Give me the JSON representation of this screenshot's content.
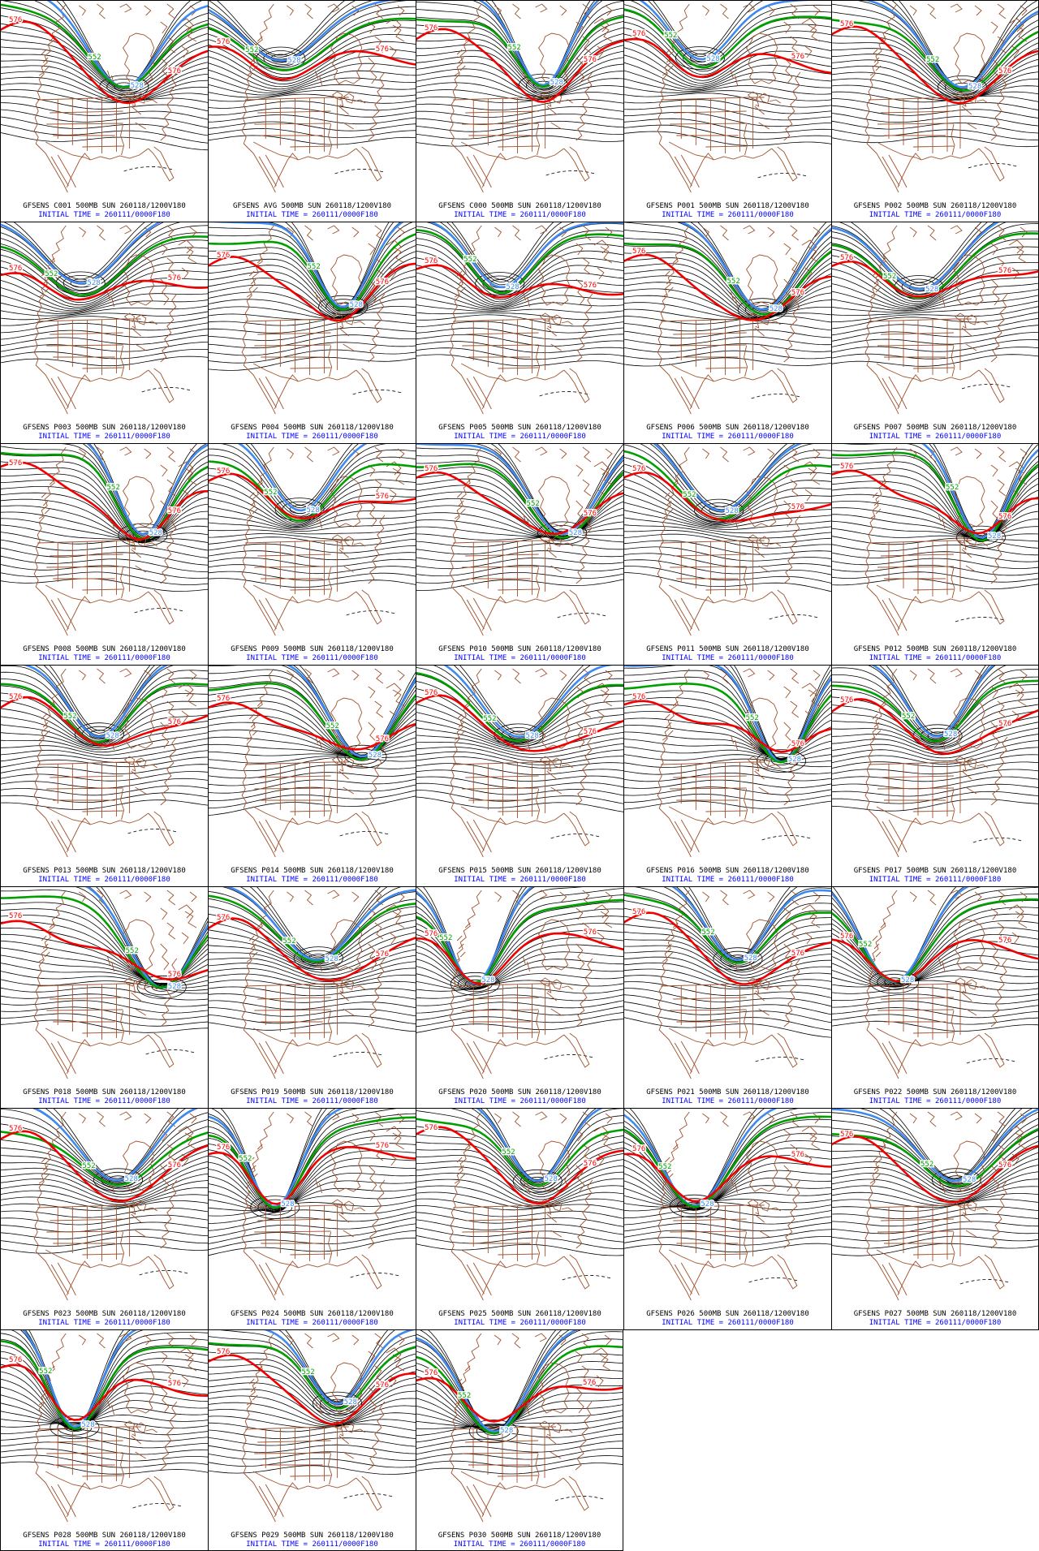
{
  "grid": {
    "columns": 5,
    "rows": 7,
    "panel_count": 33
  },
  "colors": {
    "contour_black": "#000000",
    "contour_red": "#f00000",
    "contour_green": "#00a000",
    "contour_blue": "#3d8af2",
    "map_outline": "#a0522d",
    "caption": "#000000",
    "initial_time": "#0000ff"
  },
  "contour_labels": {
    "red": "576",
    "green": "552",
    "blue": "528"
  },
  "initial_time_caption": "INITIAL TIME = 260111/0000F180",
  "panels": [
    {
      "member": "C001",
      "caption": "GFSENS C001 500MB SUN 260118/1200V180"
    },
    {
      "member": "AVG",
      "caption": "GFSENS AVG 500MB SUN 260118/1200V180"
    },
    {
      "member": "C000",
      "caption": "GFSENS C000 500MB SUN 260118/1200V180"
    },
    {
      "member": "P001",
      "caption": "GFSENS P001 500MB SUN 260118/1200V180"
    },
    {
      "member": "P002",
      "caption": "GFSENS P002 500MB SUN 260118/1200V180"
    },
    {
      "member": "P003",
      "caption": "GFSENS P003 500MB SUN 260118/1200V180"
    },
    {
      "member": "P004",
      "caption": "GFSENS P004 500MB SUN 260118/1200V180"
    },
    {
      "member": "P005",
      "caption": "GFSENS P005 500MB SUN 260118/1200V180"
    },
    {
      "member": "P006",
      "caption": "GFSENS P006 500MB SUN 260118/1200V180"
    },
    {
      "member": "P007",
      "caption": "GFSENS P007 500MB SUN 260118/1200V180"
    },
    {
      "member": "P008",
      "caption": "GFSENS P008 500MB SUN 260118/1200V180"
    },
    {
      "member": "P009",
      "caption": "GFSENS P009 500MB SUN 260118/1200V180"
    },
    {
      "member": "P010",
      "caption": "GFSENS P010 500MB SUN 260118/1200V180"
    },
    {
      "member": "P011",
      "caption": "GFSENS P011 500MB SUN 260118/1200V180"
    },
    {
      "member": "P012",
      "caption": "GFSENS P012 500MB SUN 260118/1200V180"
    },
    {
      "member": "P013",
      "caption": "GFSENS P013 500MB SUN 260118/1200V180"
    },
    {
      "member": "P014",
      "caption": "GFSENS P014 500MB SUN 260118/1200V180"
    },
    {
      "member": "P015",
      "caption": "GFSENS P015 500MB SUN 260118/1200V180"
    },
    {
      "member": "P016",
      "caption": "GFSENS P016 500MB SUN 260118/1200V180"
    },
    {
      "member": "P017",
      "caption": "GFSENS P017 500MB SUN 260118/1200V180"
    },
    {
      "member": "P018",
      "caption": "GFSENS P018 500MB SUN 260118/1200V180"
    },
    {
      "member": "P019",
      "caption": "GFSENS P019 500MB SUN 260118/1200V180"
    },
    {
      "member": "P020",
      "caption": "GFSENS P020 500MB SUN 260118/1200V180"
    },
    {
      "member": "P021",
      "caption": "GFSENS P021 500MB SUN 260118/1200V180"
    },
    {
      "member": "P022",
      "caption": "GFSENS P022 500MB SUN 260118/1200V180"
    },
    {
      "member": "P023",
      "caption": "GFSENS P023 500MB SUN 260118/1200V180"
    },
    {
      "member": "P024",
      "caption": "GFSENS P024 500MB SUN 260118/1200V180"
    },
    {
      "member": "P025",
      "caption": "GFSENS P025 500MB SUN 260118/1200V180"
    },
    {
      "member": "P026",
      "caption": "GFSENS P026 500MB SUN 260118/1200V180"
    },
    {
      "member": "P027",
      "caption": "GFSENS P027 500MB SUN 260118/1200V180"
    },
    {
      "member": "P028",
      "caption": "GFSENS P028 500MB SUN 260118/1200V180"
    },
    {
      "member": "P029",
      "caption": "GFSENS P029 500MB SUN 260118/1200V180"
    },
    {
      "member": "P030",
      "caption": "GFSENS P030 500MB SUN 260118/1200V180"
    }
  ]
}
